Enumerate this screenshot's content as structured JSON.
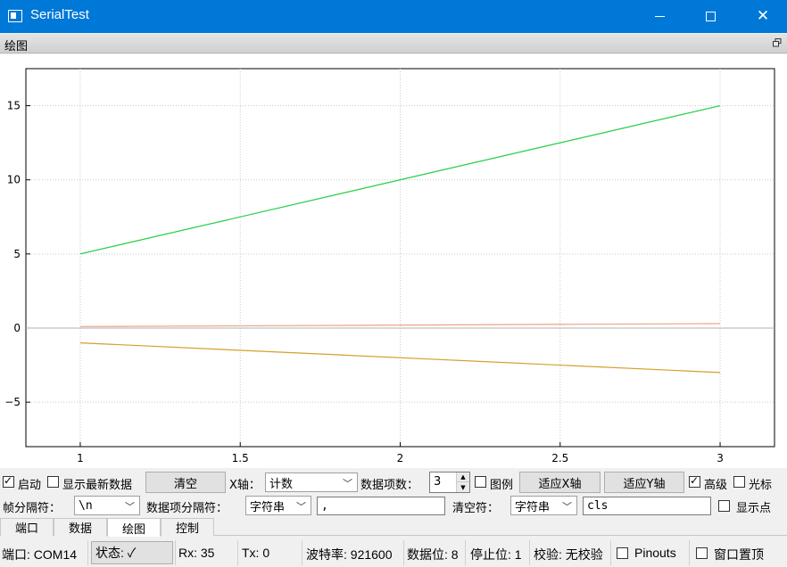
{
  "window": {
    "title": "SerialTest"
  },
  "dock": {
    "title": "绘图"
  },
  "chart_data": {
    "type": "line",
    "x_ticks": [
      "1",
      "1.5",
      "2",
      "2.5",
      "3"
    ],
    "y_ticks": [
      "15",
      "10",
      "5",
      "0",
      "−5"
    ],
    "xlim": [
      0.83,
      3.17
    ],
    "ylim": [
      -8,
      17.5
    ],
    "grid": true,
    "series": [
      {
        "color": "#22cc44",
        "x": [
          1,
          3
        ],
        "y": [
          5,
          15
        ]
      },
      {
        "color": "#d4a02a",
        "x": [
          1,
          3
        ],
        "y": [
          -1,
          -3
        ]
      },
      {
        "color": "#f0a088",
        "x": [
          1,
          3
        ],
        "y": [
          0.1,
          0.3
        ]
      }
    ]
  },
  "controls": {
    "start_label": "启动",
    "show_latest_label": "显示最新数据",
    "clear_button": "清空",
    "xaxis_label": "X轴：",
    "xaxis_value": "计数",
    "item_count_label": "数据项数：",
    "item_count_value": "3",
    "legend_label": "图例",
    "fit_x_button": "适应X轴",
    "fit_y_button": "适应Y轴",
    "advanced_label": "高级",
    "cursor_label": "光标",
    "frame_sep_label": "帧分隔符：",
    "frame_sep_value": "\\n",
    "item_sep_label": "数据项分隔符：",
    "item_sep_type": "字符串",
    "item_sep_value": ",",
    "clear_char_label": "清空符：",
    "clear_char_type": "字符串",
    "clear_char_value": "cls",
    "show_points_label": "显示点"
  },
  "tabs": [
    "端口",
    "数据",
    "绘图",
    "控制"
  ],
  "status": {
    "port": "端口: COM14",
    "state_button": "状态: ✓",
    "rx": "Rx: 35",
    "tx": "Tx: 0",
    "baud": "波特率: 921600",
    "databits": "数据位: 8",
    "stopbits": "停止位: 1",
    "parity": "校验: 无校验",
    "pinouts": "Pinouts",
    "on_top": "窗口置顶"
  }
}
